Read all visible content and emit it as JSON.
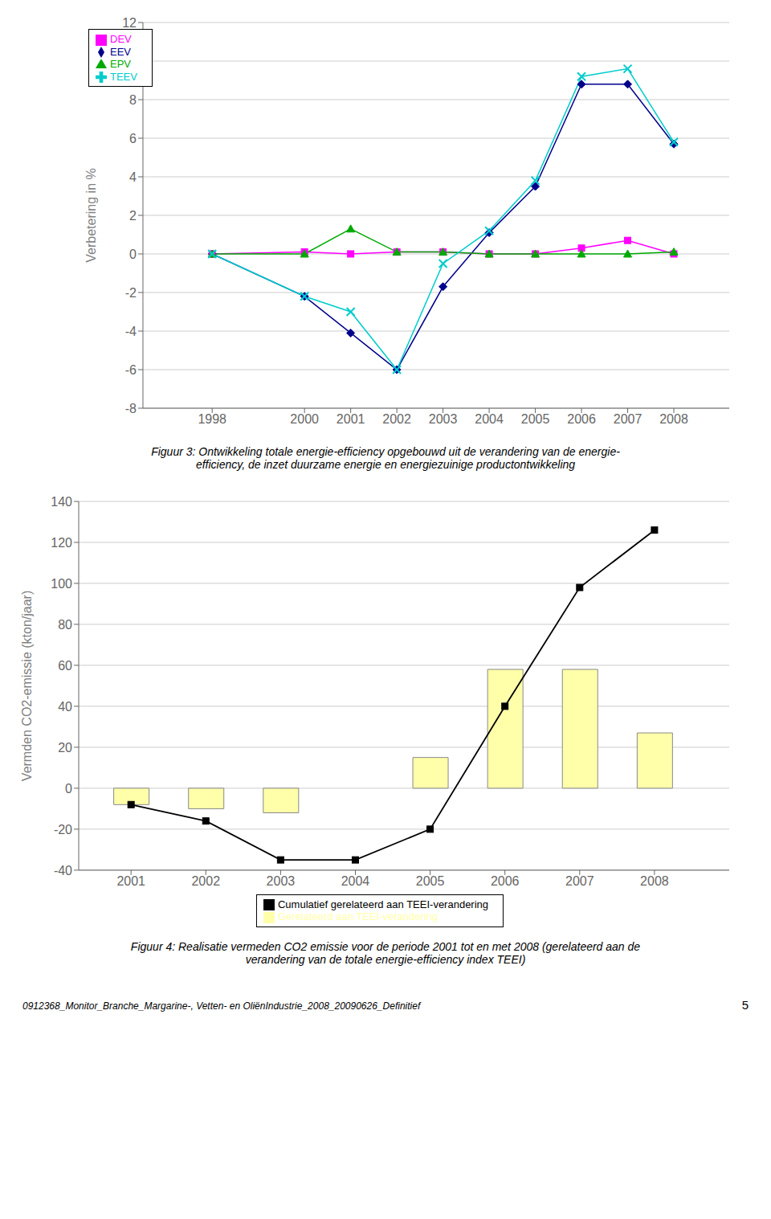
{
  "chart_data": [
    {
      "type": "line",
      "x": [
        1998,
        2000,
        2001,
        2002,
        2003,
        2004,
        2005,
        2006,
        2007,
        2008
      ],
      "xlim": [
        1996.5,
        2009.2
      ],
      "xticks": [
        1998,
        2000,
        2001,
        2002,
        2003,
        2004,
        2005,
        2006,
        2007,
        2008
      ],
      "ylim": [
        -8,
        12
      ],
      "yticks": [
        -8,
        -6,
        -4,
        -2,
        0,
        2,
        4,
        6,
        8,
        10,
        12
      ],
      "ylabel": "Verbetering in %",
      "grid": true,
      "legend": "upper left",
      "series": [
        {
          "name": "EEV",
          "color": "#00008B",
          "marker": "diamond",
          "values": [
            0,
            -2.2,
            -4.1,
            -6.0,
            -1.7,
            1.1,
            3.5,
            8.8,
            8.8,
            5.7
          ]
        },
        {
          "name": "DEV",
          "color": "#FF00FF",
          "marker": "square",
          "values": [
            0,
            0.1,
            0.0,
            0.1,
            0.1,
            0.0,
            0.0,
            0.3,
            0.7,
            0.0
          ]
        },
        {
          "name": "EPV",
          "color": "#00AA00",
          "marker": "triangle",
          "values": [
            0,
            0.0,
            1.3,
            0.1,
            0.1,
            0.0,
            0.0,
            0.0,
            0.0,
            0.1
          ]
        },
        {
          "name": "TEEV",
          "color": "#00CCCC",
          "marker": "x",
          "values": [
            0,
            -2.2,
            -3.0,
            -6.0,
            -0.5,
            1.2,
            3.8,
            9.2,
            9.6,
            5.8
          ]
        }
      ],
      "annotations": [
        "Figuur 3: Ontwikkeling totale energie-efficiency opgebouwd uit de verandering van de energie-",
        "efficiency, de inzet duurzame energie en energiezuinige productontwikkeling"
      ]
    },
    {
      "type": "bar",
      "x": [
        2001,
        2002,
        2003,
        2004,
        2005,
        2006,
        2007,
        2008
      ],
      "xlim": [
        2000.3,
        2009.0
      ],
      "xticks": [
        2001,
        2002,
        2003,
        2004,
        2005,
        2006,
        2007,
        2008
      ],
      "ylim": [
        -40,
        140
      ],
      "yticks": [
        -40,
        -20,
        0,
        20,
        40,
        60,
        80,
        100,
        120,
        140
      ],
      "ylabel": "Vermden CO2-emissie (kton/jaar)",
      "grid": true,
      "legend": "bottom",
      "series": [
        {
          "name": "Gerelateerd aan TEEI-verandering",
          "type": "bar",
          "color": "#FFFFAA",
          "values": [
            -8.0,
            -10.0,
            -12.0,
            0,
            15.0,
            58.0,
            58.0,
            27.0
          ]
        },
        {
          "name": "Cumulatief gerelateerd aan TEEI-verandering",
          "type": "line",
          "color": "#000000",
          "marker": "square",
          "values": [
            -8.0,
            -16.0,
            -35.0,
            -35.0,
            -20.0,
            40.0,
            98.0,
            126.0
          ]
        }
      ],
      "annotations": [
        "Figuur 4: Realisatie vermeden CO2 emissie voor de periode 2001 tot en met 2008 (gerelateerd aan de",
        "verandering van de totale energie-efficiency index TEEI)"
      ]
    }
  ],
  "annotations": [
    "0912368_Monitor_Branche_Margarine-, Vetten- en OliënIndustrie_2008_20090626_Definitief",
    "5"
  ]
}
